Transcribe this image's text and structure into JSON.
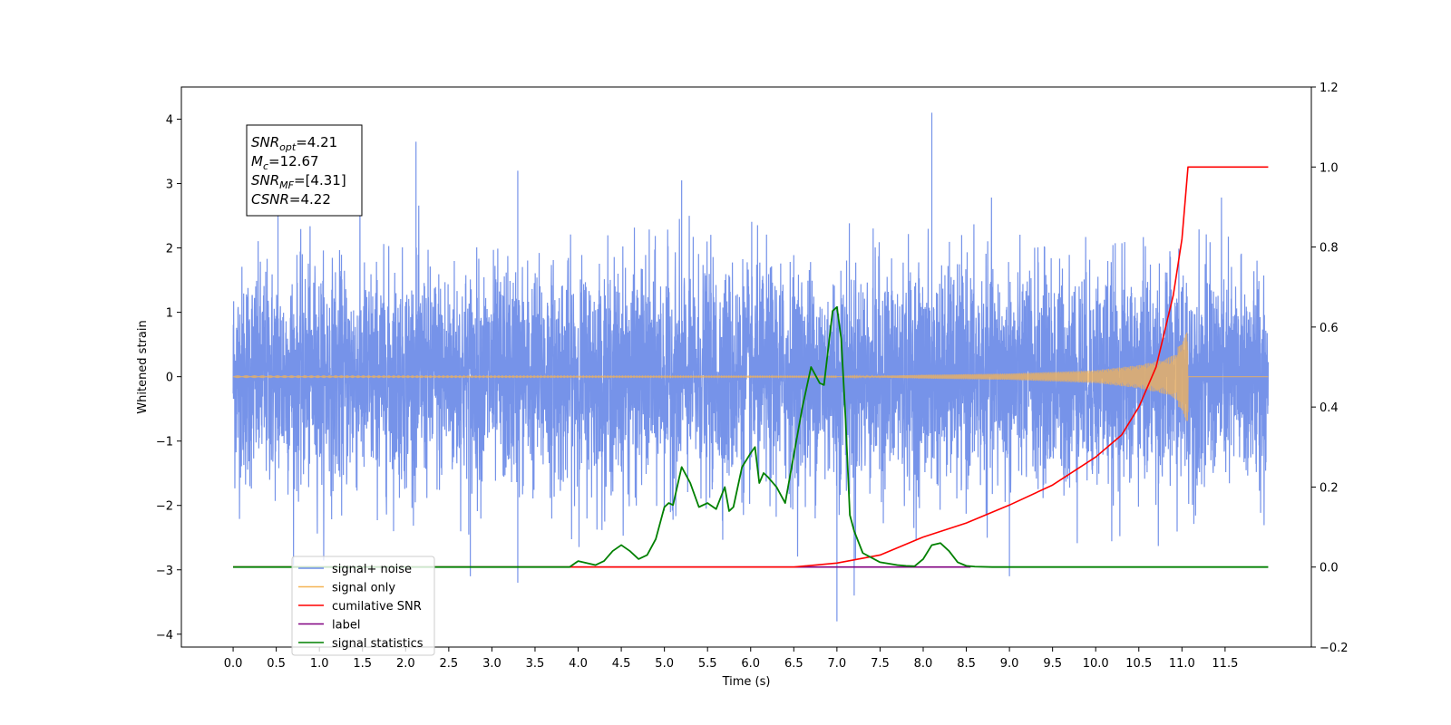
{
  "chart_data": {
    "type": "line",
    "xlabel": "Time (s)",
    "ylabel": "Whitened strain",
    "xlim": [
      -0.6,
      12.5
    ],
    "ylim_left": [
      -4.2,
      4.5
    ],
    "ylim_right": [
      -0.2,
      1.2
    ],
    "x_ticks": [
      "0.0",
      "0.5",
      "1.0",
      "1.5",
      "2.0",
      "2.5",
      "3.0",
      "3.5",
      "4.0",
      "4.5",
      "5.0",
      "5.5",
      "6.0",
      "6.5",
      "7.0",
      "7.5",
      "8.0",
      "8.5",
      "9.0",
      "9.5",
      "10.0",
      "10.5",
      "11.0",
      "11.5"
    ],
    "y_ticks_left": [
      "−4",
      "−3",
      "−2",
      "−1",
      "0",
      "1",
      "2",
      "3",
      "4"
    ],
    "y_ticks_right": [
      "−0.2",
      "0.0",
      "0.2",
      "0.4",
      "0.6",
      "0.8",
      "1.0",
      "1.2"
    ],
    "grid": false,
    "legend_position": "lower-left",
    "annotation": [
      {
        "base": "SNR",
        "sub": "opt",
        "rest": "=4.21"
      },
      {
        "base": "M",
        "sub": "c",
        "rest": "=12.67"
      },
      {
        "base": "SNR",
        "sub": "MF",
        "rest": "=[4.31]"
      },
      {
        "base": "CSNR",
        "sub": "",
        "rest": "=4.22"
      }
    ],
    "series": [
      {
        "name": "signal+ noise",
        "axis": "left",
        "color": "#6f8de8",
        "x_range": [
          0.0,
          12.0
        ],
        "amplitude_typical": 1.6,
        "peak_values": [
          [
            0.52,
            2.6
          ],
          [
            2.12,
            3.65
          ],
          [
            3.3,
            3.2
          ],
          [
            5.2,
            3.05
          ],
          [
            7.0,
            -3.8
          ],
          [
            7.2,
            -3.4
          ],
          [
            8.1,
            4.1
          ],
          [
            3.3,
            -3.2
          ],
          [
            2.75,
            -3.1
          ],
          [
            9.0,
            -3.1
          ]
        ]
      },
      {
        "name": "signal only",
        "axis": "left",
        "color": "#f5b354",
        "x_range": [
          0.0,
          12.0
        ],
        "envelope": [
          [
            7.0,
            0.0
          ],
          [
            8.0,
            0.03
          ],
          [
            9.0,
            0.05
          ],
          [
            10.0,
            0.1
          ],
          [
            10.5,
            0.18
          ],
          [
            10.8,
            0.27
          ],
          [
            11.0,
            0.4
          ],
          [
            11.05,
            0.55
          ]
        ],
        "cutoff": 11.07
      },
      {
        "name": "cumilative SNR",
        "axis": "right",
        "color": "#ff0000",
        "x": [
          0.0,
          6.5,
          7.0,
          7.5,
          8.0,
          8.5,
          9.0,
          9.5,
          10.0,
          10.3,
          10.5,
          10.7,
          10.9,
          11.0,
          11.07,
          11.1,
          12.0
        ],
        "y": [
          0.0,
          0.0,
          0.01,
          0.03,
          0.075,
          0.11,
          0.155,
          0.205,
          0.275,
          0.33,
          0.4,
          0.5,
          0.68,
          0.82,
          1.0,
          1.0,
          1.0
        ]
      },
      {
        "name": "label",
        "axis": "right",
        "color": "#800080",
        "x": [
          0.0,
          8.55
        ],
        "y": [
          0.0,
          0.0
        ]
      },
      {
        "name": "signal statistics",
        "axis": "right",
        "color": "#008000",
        "x": [
          0.0,
          3.9,
          4.0,
          4.2,
          4.3,
          4.4,
          4.5,
          4.6,
          4.7,
          4.8,
          4.9,
          5.0,
          5.05,
          5.1,
          5.2,
          5.3,
          5.4,
          5.5,
          5.6,
          5.7,
          5.75,
          5.8,
          5.9,
          6.0,
          6.05,
          6.1,
          6.15,
          6.2,
          6.3,
          6.4,
          6.5,
          6.6,
          6.7,
          6.8,
          6.85,
          6.95,
          7.0,
          7.05,
          7.1,
          7.15,
          7.2,
          7.3,
          7.5,
          7.7,
          7.8,
          7.9,
          8.0,
          8.1,
          8.2,
          8.3,
          8.4,
          8.5,
          8.6,
          8.8,
          9.0,
          12.0
        ],
        "y": [
          0.0,
          0.0,
          0.015,
          0.005,
          0.015,
          0.04,
          0.055,
          0.04,
          0.02,
          0.03,
          0.07,
          0.15,
          0.16,
          0.155,
          0.25,
          0.21,
          0.15,
          0.16,
          0.145,
          0.2,
          0.14,
          0.15,
          0.25,
          0.285,
          0.3,
          0.21,
          0.235,
          0.225,
          0.2,
          0.16,
          0.28,
          0.4,
          0.5,
          0.46,
          0.455,
          0.64,
          0.65,
          0.57,
          0.37,
          0.13,
          0.09,
          0.035,
          0.012,
          0.005,
          0.003,
          0.002,
          0.02,
          0.055,
          0.06,
          0.04,
          0.012,
          0.003,
          0.001,
          0.0,
          0.0,
          0.0
        ]
      }
    ]
  }
}
